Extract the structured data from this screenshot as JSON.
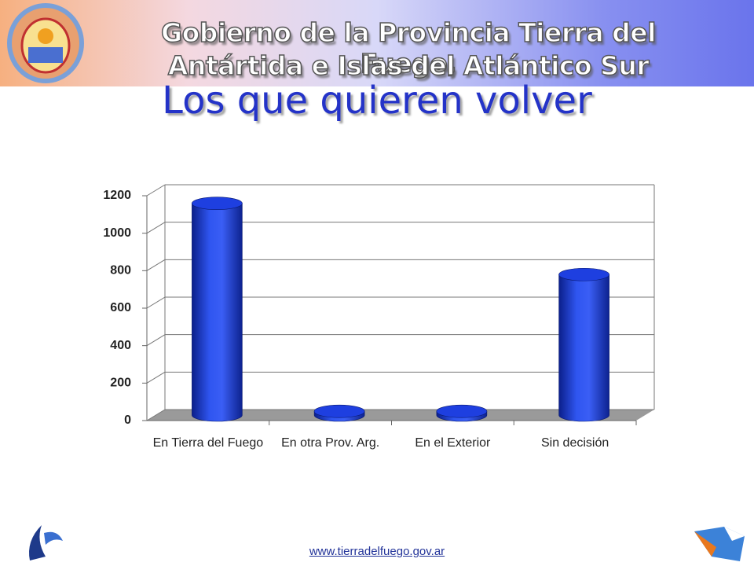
{
  "header": {
    "line1": "Gobierno de la Provincia Tierra del Fuego,",
    "line2": "Antártida e Islas del Atlántico Sur"
  },
  "footer": "www.tierradelfuego.gov.ar",
  "chart_data": {
    "type": "bar",
    "title": "Los que quieren volver",
    "categories": [
      "En Tierra del Fuego",
      "En otra Prov. Arg.",
      "En el Exterior",
      "Sin decisión"
    ],
    "values": [
      1130,
      20,
      20,
      750
    ],
    "color": "#1e3fe0",
    "ylim": [
      0,
      1200
    ],
    "yticks": [
      0,
      200,
      400,
      600,
      800,
      1000,
      1200
    ],
    "grid": true
  }
}
